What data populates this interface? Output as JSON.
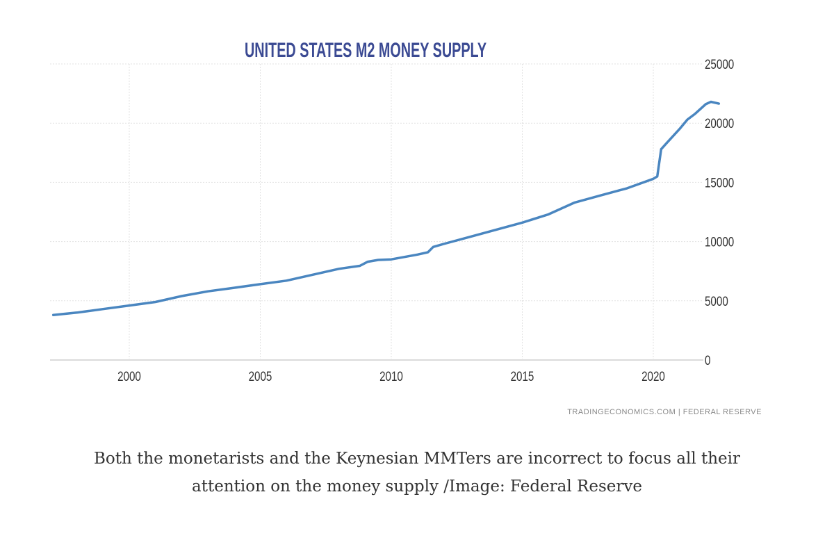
{
  "chart_data": {
    "type": "line",
    "title": "UNITED STATES M2 MONEY SUPPLY",
    "xlabel": "",
    "ylabel": "",
    "xlim": [
      1997.1,
      2022.6
    ],
    "ylim": [
      0,
      25000
    ],
    "x_ticks": [
      2000,
      2005,
      2010,
      2015,
      2020
    ],
    "y_ticks": [
      0,
      5000,
      10000,
      15000,
      20000,
      25000
    ],
    "y_axis_side": "right",
    "grid": true,
    "line_color": "#4a86c0",
    "series": [
      {
        "x": [
          1997.1,
          1998,
          1999,
          2000,
          2001,
          2002,
          2003,
          2004,
          2005,
          2006,
          2007,
          2008,
          2008.8,
          2009.1,
          2009.5,
          2010,
          2011,
          2011.4,
          2011.6,
          2012,
          2013,
          2014,
          2015,
          2016,
          2017,
          2018,
          2019,
          2020,
          2020.15,
          2020.3,
          2020.5,
          2021,
          2021.3,
          2021.6,
          2022,
          2022.2,
          2022.5
        ],
        "y": [
          3800,
          4000,
          4300,
          4600,
          4900,
          5400,
          5800,
          6100,
          6400,
          6700,
          7200,
          7700,
          7950,
          8300,
          8450,
          8500,
          8900,
          9100,
          9550,
          9800,
          10400,
          11000,
          11600,
          12300,
          13300,
          13900,
          14500,
          15300,
          15500,
          17800,
          18300,
          19500,
          20300,
          20800,
          21600,
          21800,
          21650
        ]
      }
    ]
  },
  "source": "TRADINGECONOMICS.COM | FEDERAL RESERVE",
  "caption": {
    "line1": "Both the monetarists and the Keynesian MMTers are incorrect to focus all their",
    "line2": "attention on the money supply /Image: Federal Reserve"
  }
}
